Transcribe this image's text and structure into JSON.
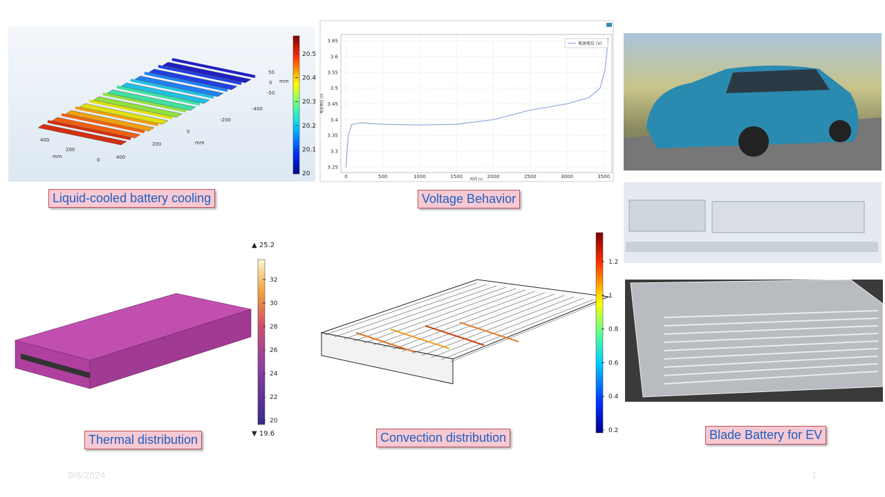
{
  "captions": [
    "Liquid-cooled battery cooling",
    "Voltage Behavior",
    "Thermal distribution",
    "Convection distribution",
    "Blade Battery for EV"
  ],
  "cooling_plot": {
    "colorbar_ticks": [
      20,
      20.1,
      20.2,
      20.3,
      20.4,
      20.5
    ],
    "axis_labels": [
      "400",
      "200",
      "0",
      "mm",
      "400",
      "200",
      "0",
      "mm",
      "-200",
      "-400",
      "50",
      "0",
      "-50",
      "mm"
    ]
  },
  "voltage_chart": {
    "type": "line",
    "xlabel": "时间 (s)",
    "ylabel": "电池电位 (V)",
    "x": [
      0,
      30,
      80,
      200,
      500,
      1000,
      1500,
      2000,
      2500,
      3000,
      3300,
      3450,
      3520,
      3560
    ],
    "series": [
      {
        "name": "电池电位 (V)",
        "color": "#8fa8d8",
        "values": [
          3.25,
          3.35,
          3.385,
          3.39,
          3.385,
          3.383,
          3.385,
          3.4,
          3.43,
          3.45,
          3.47,
          3.5,
          3.56,
          3.66
        ]
      }
    ],
    "xlim": [
      -70,
      3610
    ],
    "xticks": [
      0,
      500,
      1000,
      1500,
      2000,
      2500,
      3000,
      3500
    ],
    "ylim": [
      3.232,
      3.67
    ],
    "yticks": [
      3.25,
      3.3,
      3.35,
      3.4,
      3.45,
      3.5,
      3.55,
      3.6,
      3.65
    ],
    "grid": true,
    "legend": "upper right"
  },
  "thermal_colorbar": {
    "max_label": "▲ 25.2",
    "min_label": "▼ 19.6",
    "ticks": [
      20,
      22,
      24,
      26,
      28,
      30,
      32
    ]
  },
  "convection_colorbar": {
    "ticks": [
      0.2,
      0.4,
      0.6,
      0.8,
      1,
      1.2
    ]
  },
  "footer": {
    "date": "9/8/2024",
    "page": "1"
  }
}
